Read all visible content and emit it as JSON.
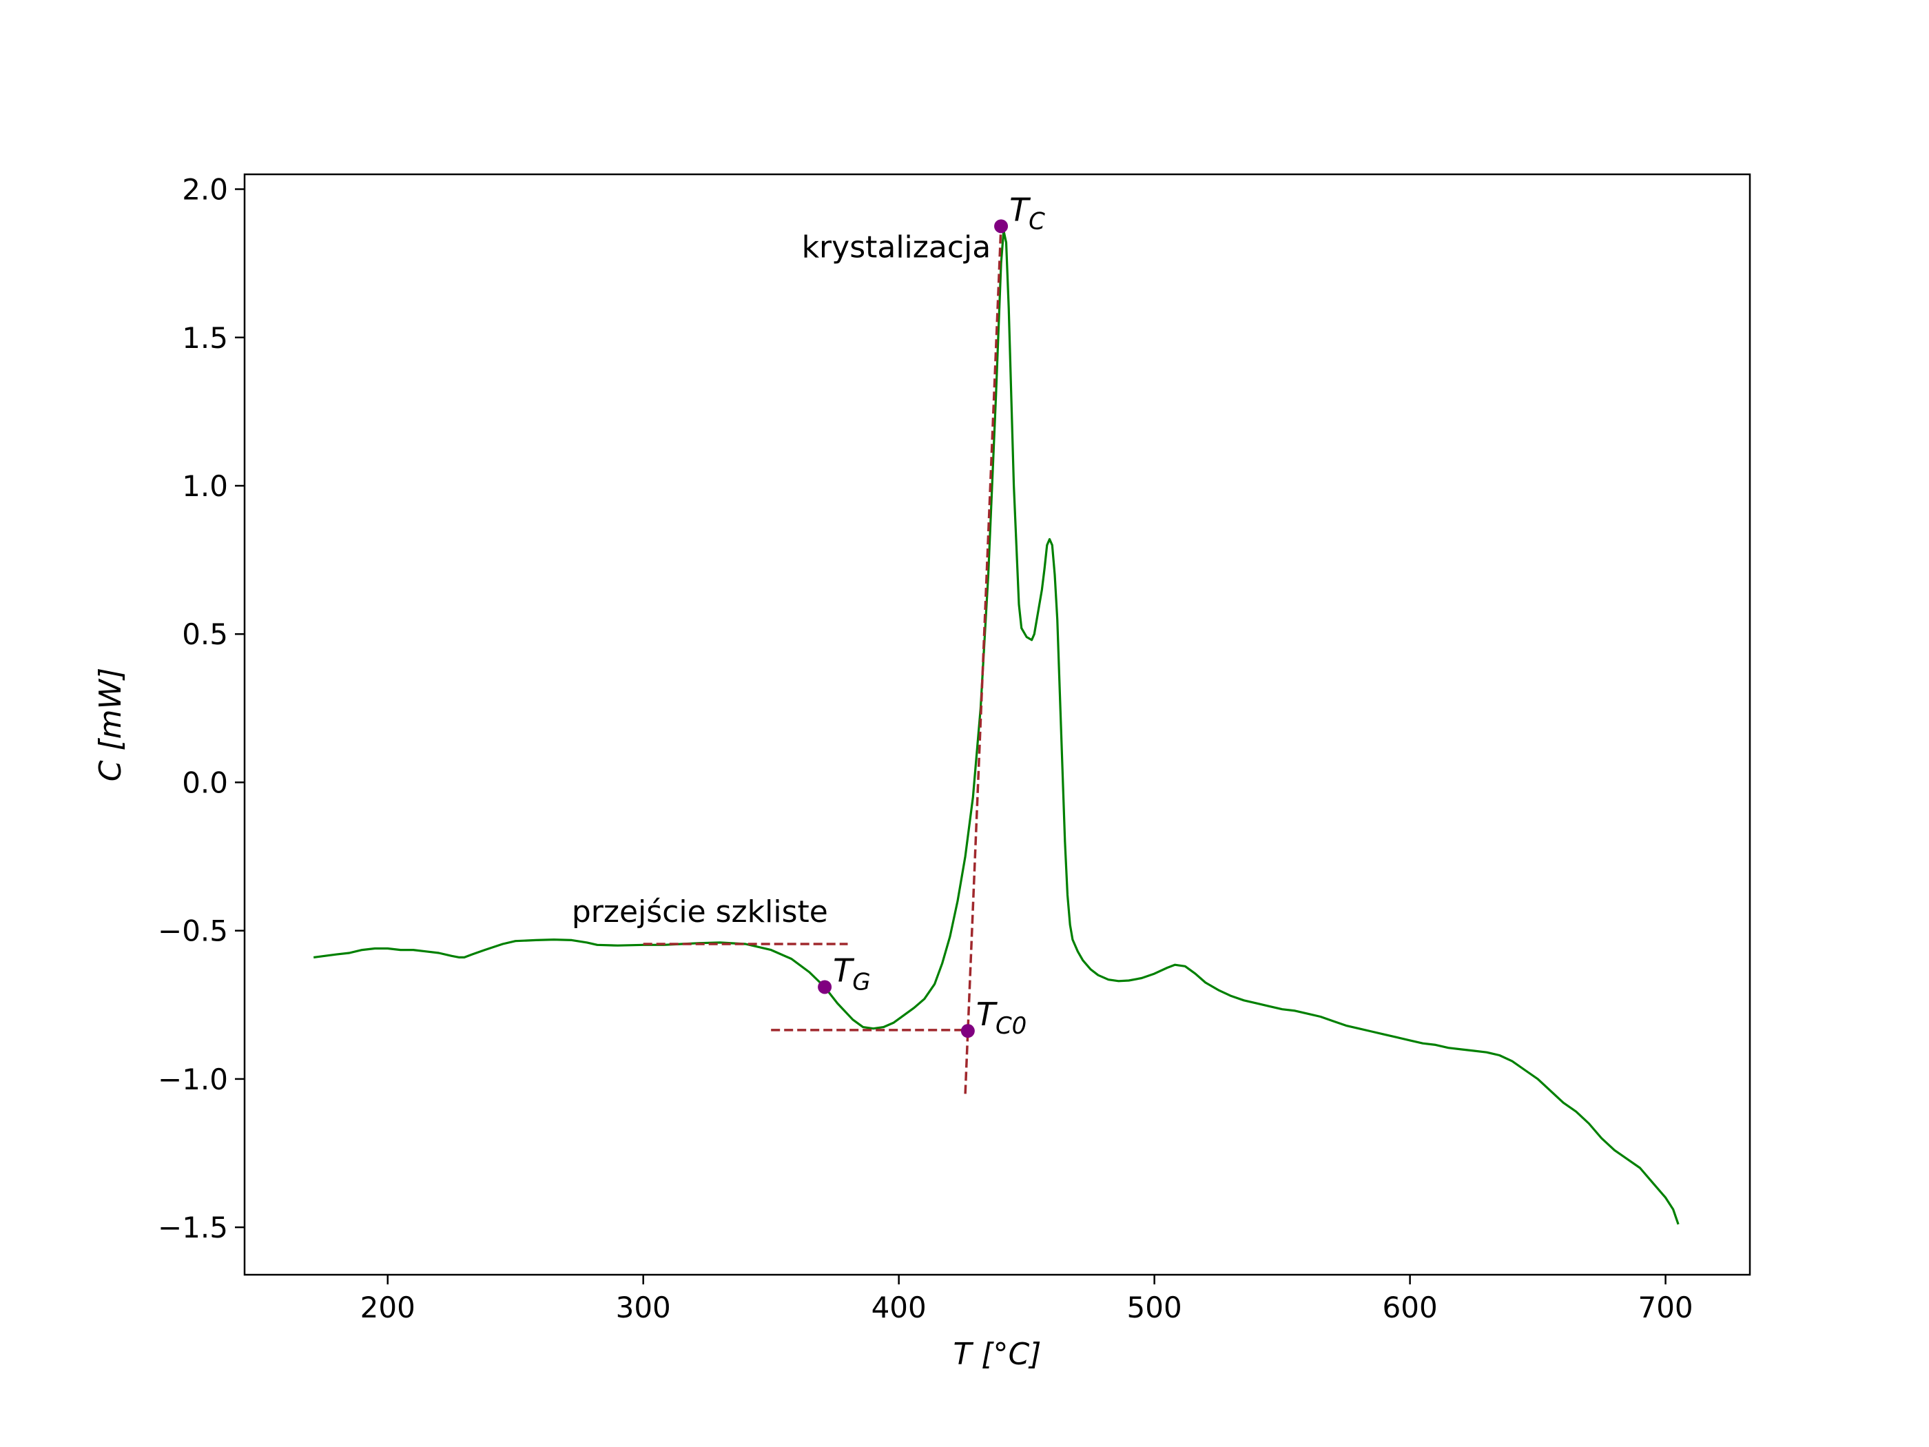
{
  "chart_data": {
    "type": "line",
    "xlabel": "T [°C]",
    "ylabel": "C [mW]",
    "xlim": [
      144,
      733
    ],
    "ylim": [
      -1.66,
      2.05
    ],
    "xticks": [
      200,
      300,
      400,
      500,
      600,
      700
    ],
    "yticks": [
      2.0,
      1.5,
      1.0,
      0.5,
      0.0,
      -0.5,
      -1.0,
      -1.5
    ],
    "ytick_labels": [
      "2.0",
      "1.5",
      "1.0",
      "0.5",
      "0.0",
      "−0.5",
      "−1.0",
      "−1.5"
    ],
    "xtick_labels": [
      "200",
      "300",
      "400",
      "500",
      "600",
      "700"
    ],
    "grid": false,
    "colors": {
      "curve": "#008000",
      "guide": "#a0282d",
      "marker": "#800080"
    },
    "series": [
      {
        "x": [
          171,
          180,
          185,
          190,
          195,
          200,
          205,
          210,
          215,
          220,
          225,
          228,
          230,
          233,
          238,
          245,
          250,
          258,
          265,
          272,
          278,
          282,
          290,
          300,
          308,
          315,
          322,
          330,
          340,
          350,
          358,
          365,
          371,
          376,
          382,
          386,
          390,
          394,
          398,
          402,
          406,
          410,
          414,
          417,
          420,
          423,
          426,
          429,
          432,
          435,
          438,
          440,
          441,
          442,
          443,
          444,
          445,
          446,
          447,
          448,
          450,
          452,
          453,
          454,
          456,
          457,
          458,
          459,
          460,
          461,
          462,
          463,
          464,
          465,
          466,
          467,
          468,
          470,
          472,
          475,
          478,
          482,
          486,
          490,
          495,
          500,
          505,
          508,
          512,
          516,
          520,
          525,
          530,
          535,
          540,
          545,
          550,
          555,
          560,
          565,
          570,
          575,
          580,
          585,
          590,
          595,
          600,
          605,
          610,
          615,
          620,
          625,
          630,
          635,
          640,
          645,
          650,
          655,
          660,
          665,
          670,
          675,
          680,
          685,
          690,
          695,
          700,
          703,
          705
        ],
        "y": [
          -0.59,
          -0.58,
          -0.575,
          -0.565,
          -0.56,
          -0.56,
          -0.565,
          -0.565,
          -0.57,
          -0.575,
          -0.585,
          -0.59,
          -0.59,
          -0.58,
          -0.565,
          -0.545,
          -0.535,
          -0.532,
          -0.53,
          -0.532,
          -0.54,
          -0.548,
          -0.55,
          -0.548,
          -0.548,
          -0.545,
          -0.542,
          -0.54,
          -0.545,
          -0.565,
          -0.595,
          -0.64,
          -0.69,
          -0.745,
          -0.8,
          -0.825,
          -0.83,
          -0.825,
          -0.81,
          -0.785,
          -0.76,
          -0.73,
          -0.68,
          -0.61,
          -0.52,
          -0.4,
          -0.25,
          -0.05,
          0.25,
          0.7,
          1.3,
          1.75,
          1.86,
          1.82,
          1.6,
          1.3,
          1.0,
          0.8,
          0.6,
          0.52,
          0.49,
          0.48,
          0.5,
          0.55,
          0.65,
          0.72,
          0.8,
          0.82,
          0.8,
          0.7,
          0.55,
          0.3,
          0.05,
          -0.2,
          -0.38,
          -0.48,
          -0.53,
          -0.57,
          -0.6,
          -0.63,
          -0.65,
          -0.665,
          -0.67,
          -0.668,
          -0.66,
          -0.645,
          -0.625,
          -0.615,
          -0.62,
          -0.645,
          -0.675,
          -0.7,
          -0.72,
          -0.735,
          -0.745,
          -0.755,
          -0.765,
          -0.77,
          -0.78,
          -0.79,
          -0.805,
          -0.82,
          -0.83,
          -0.84,
          -0.85,
          -0.86,
          -0.87,
          -0.88,
          -0.885,
          -0.895,
          -0.9,
          -0.905,
          -0.91,
          -0.92,
          -0.94,
          -0.97,
          -1.0,
          -1.04,
          -1.08,
          -1.11,
          -1.15,
          -1.2,
          -1.24,
          -1.27,
          -1.3,
          -1.35,
          -1.4,
          -1.44,
          -1.49
        ]
      }
    ],
    "guides": [
      {
        "x": [
          300,
          380
        ],
        "y": [
          -0.545,
          -0.545
        ]
      },
      {
        "x": [
          350,
          428
        ],
        "y": [
          -0.835,
          -0.835
        ]
      },
      {
        "x": [
          426,
          440
        ],
        "y": [
          -1.05,
          1.88
        ]
      }
    ],
    "points": [
      {
        "label": "T",
        "sub": "C",
        "x": 440,
        "y": 1.875
      },
      {
        "label": "T",
        "sub": "G",
        "x": 371,
        "y": -0.69
      },
      {
        "label": "T",
        "sub": "C0",
        "x": 427,
        "y": -0.838
      }
    ],
    "annotations": [
      {
        "text": "krystalizacja",
        "x": 436,
        "y": 1.77,
        "anchor": "end"
      },
      {
        "text": "przejście szkliste",
        "x": 272,
        "y": -0.47,
        "anchor": "start"
      }
    ]
  }
}
